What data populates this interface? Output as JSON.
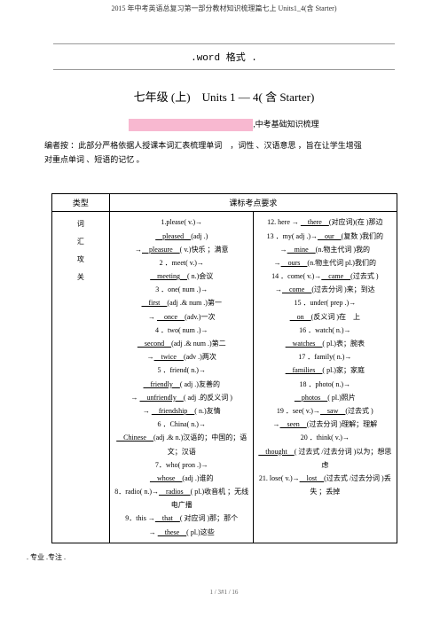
{
  "topHeader": "2015 年中考英语总复习第一部分教材知识梳理篇七上 Units1_4(含 Starter)",
  "formatTitle": ".word 格式 .",
  "unitTitle": "七年级 (上)　Units 1 — 4( 含 Starter)",
  "subtitle": ",中考基础知识梳理",
  "introText1": "编者按 ：此部分严格依据人授课本词汇表梳理单词　，词性 、汉语意思 ，旨在让学生增强",
  "introText2": "对重点单词 、短语的记忆 。",
  "tableHeader1": "类型",
  "tableHeader2": "课标考点要求",
  "typeLabel": "词汇攻关",
  "footerNote": ". 专业 .专注 .",
  "pageNum": "1 / 3#1 / 16",
  "col1": [
    "1.please( v.)→",
    "__pleased__(adj .)",
    "→__pleasure__( v.)快乐 ；满意",
    "2 ．meet( v.)→",
    "__meeting__( n.)会议",
    "3 ．one( num .)→",
    "__first__(adj .& num .)第一",
    "→ __once__(adv.)一次",
    "4 ．two( num .)→",
    "__second__(adj .& num .)第二",
    "→__twice__(adv .)两次",
    "5 ．friend( n.)→",
    "__friendly__( adj .)友善的",
    "→ __unfriendly__( adj .的反义词 )",
    "→ __friendship__( n.)友情",
    "6 ．China( n.)→",
    "__Chinese__(adj .& n.)汉语的；中国的；语文；汉语",
    "7．who( pron .)→",
    "__whose__(adj .)谁的",
    "8．radio( n.)→__radios__( pl.)收音机 ；无线电广播",
    "9．this →__that__( 对应词 )那；那个",
    "→ __these__( pl.)这些"
  ],
  "col2": [
    "12. here → __there__(对应词)(在 )那边",
    "13 ．my( adj .)→__our__(复数 )我们的",
    "→__mine__(n.物主代词 )我的",
    "→__ours__(n.物主代词 pl.)我们的",
    "14 ．come( v.)→__came__(过去式 )",
    "→__come__(过去分词 )来；到达",
    "15 ．under( prep .)→",
    "__on__(反义词 )在　上",
    "16 ．watch( n.)→",
    "__watches__( pl.)表；腕表",
    "17 ．family( n.)→",
    "__families__( pl.)家；家庭",
    "18 ．photo( n.)→",
    "__photos__( pl.)照片",
    "19 ．see( v.)→__saw__(过去式 )",
    "→__seen__(过去分词 )理解；理解",
    "20 ．think( v.)→",
    "__thought__( 过去式 /过去分词 )以为；想思虑",
    "21. lose( v.)→__lost__(过去式 /过去分词 )丢失 ；丢掉"
  ]
}
